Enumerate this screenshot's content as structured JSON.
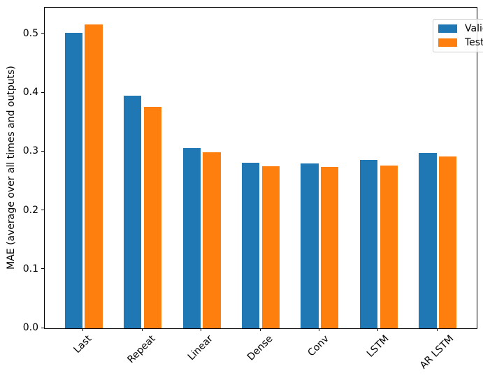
{
  "chart_data": {
    "type": "bar",
    "title": "",
    "xlabel": "",
    "ylabel": "MAE (average over all times and outputs)",
    "categories": [
      "Last",
      "Repeat",
      "Linear",
      "Dense",
      "Conv",
      "LSTM",
      "AR LSTM"
    ],
    "series": [
      {
        "name": "Validation",
        "color": "#1f77b4",
        "values": [
          0.502,
          0.396,
          0.306,
          0.281,
          0.28,
          0.286,
          0.298
        ]
      },
      {
        "name": "Test",
        "color": "#ff7f0e",
        "values": [
          0.517,
          0.377,
          0.299,
          0.276,
          0.274,
          0.277,
          0.292
        ]
      }
    ],
    "yticks": [
      "0.0",
      "0.1",
      "0.2",
      "0.3",
      "0.4",
      "0.5"
    ],
    "ylim": [
      0,
      0.545
    ],
    "xlim": [
      -0.66,
      6.66
    ],
    "bar_width": 0.3,
    "bar_offset": 0.17,
    "xtick_rotation_deg": 45,
    "grid": false,
    "legend_position": "upper right",
    "axis_color": "#000000",
    "background_color": "#ffffff"
  }
}
